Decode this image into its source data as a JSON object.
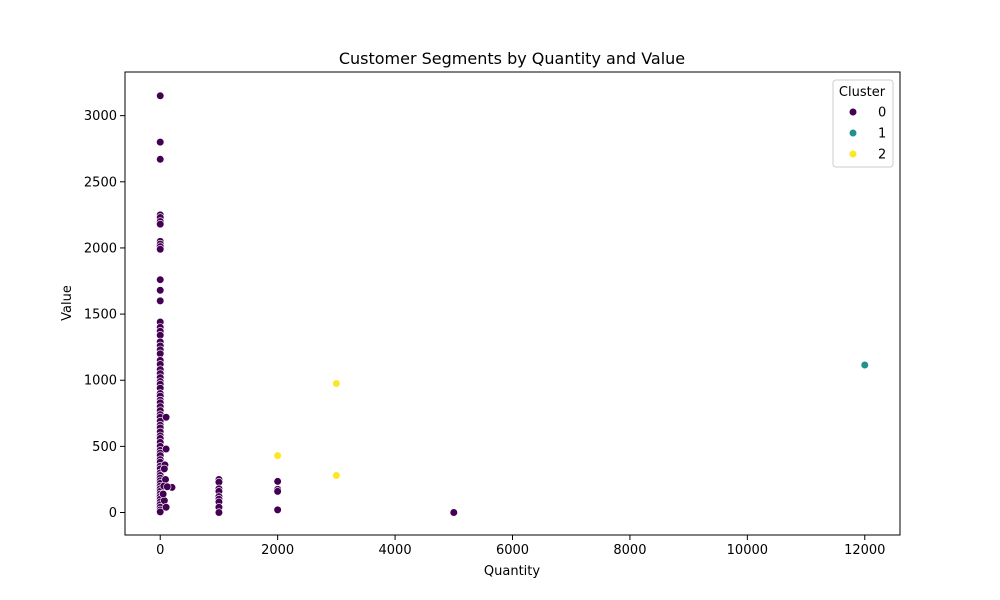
{
  "chart_data": {
    "type": "scatter",
    "title": "Customer Segments by Quantity and Value",
    "xlabel": "Quantity",
    "ylabel": "Value",
    "xlim": [
      -600,
      12600
    ],
    "ylim": [
      -170,
      3330
    ],
    "x_ticks": [
      0,
      2000,
      4000,
      6000,
      8000,
      10000,
      12000
    ],
    "y_ticks": [
      0,
      500,
      1000,
      1500,
      2000,
      2500,
      3000
    ],
    "grid": false,
    "legend": {
      "title": "Cluster",
      "placement": "top-right"
    },
    "series": [
      {
        "name": "0",
        "color": "#440154",
        "points": [
          [
            0,
            3150
          ],
          [
            0,
            2800
          ],
          [
            0,
            2670
          ],
          [
            0,
            2250
          ],
          [
            0,
            2230
          ],
          [
            0,
            2200
          ],
          [
            0,
            2180
          ],
          [
            0,
            2050
          ],
          [
            0,
            2030
          ],
          [
            0,
            2010
          ],
          [
            0,
            1990
          ],
          [
            0,
            1760
          ],
          [
            0,
            1680
          ],
          [
            0,
            1600
          ],
          [
            0,
            1440
          ],
          [
            0,
            1400
          ],
          [
            0,
            1370
          ],
          [
            0,
            1340
          ],
          [
            0,
            1290
          ],
          [
            0,
            1260
          ],
          [
            0,
            1230
          ],
          [
            0,
            1200
          ],
          [
            0,
            1150
          ],
          [
            0,
            1120
          ],
          [
            0,
            1080
          ],
          [
            0,
            1050
          ],
          [
            0,
            1020
          ],
          [
            0,
            990
          ],
          [
            0,
            970
          ],
          [
            0,
            940
          ],
          [
            0,
            900
          ],
          [
            0,
            880
          ],
          [
            0,
            850
          ],
          [
            0,
            830
          ],
          [
            0,
            800
          ],
          [
            0,
            770
          ],
          [
            0,
            740
          ],
          [
            0,
            720
          ],
          [
            0,
            690
          ],
          [
            0,
            660
          ],
          [
            0,
            640
          ],
          [
            0,
            610
          ],
          [
            0,
            580
          ],
          [
            0,
            560
          ],
          [
            0,
            530
          ],
          [
            0,
            500
          ],
          [
            0,
            470
          ],
          [
            0,
            450
          ],
          [
            0,
            430
          ],
          [
            0,
            400
          ],
          [
            0,
            380
          ],
          [
            0,
            350
          ],
          [
            0,
            330
          ],
          [
            0,
            300
          ],
          [
            0,
            280
          ],
          [
            0,
            260
          ],
          [
            0,
            240
          ],
          [
            0,
            220
          ],
          [
            0,
            200
          ],
          [
            0,
            180
          ],
          [
            0,
            160
          ],
          [
            0,
            140
          ],
          [
            0,
            120
          ],
          [
            0,
            100
          ],
          [
            0,
            80
          ],
          [
            0,
            60
          ],
          [
            0,
            40
          ],
          [
            0,
            20
          ],
          [
            0,
            5
          ],
          [
            100,
            720
          ],
          [
            100,
            480
          ],
          [
            80,
            360
          ],
          [
            70,
            330
          ],
          [
            90,
            250
          ],
          [
            60,
            200
          ],
          [
            200,
            190
          ],
          [
            120,
            195
          ],
          [
            70,
            90
          ],
          [
            100,
            40
          ],
          [
            50,
            140
          ],
          [
            1000,
            250
          ],
          [
            1000,
            230
          ],
          [
            1000,
            180
          ],
          [
            1000,
            160
          ],
          [
            1000,
            120
          ],
          [
            1000,
            100
          ],
          [
            1000,
            80
          ],
          [
            1000,
            40
          ],
          [
            1000,
            0
          ],
          [
            2000,
            235
          ],
          [
            2000,
            175
          ],
          [
            2000,
            160
          ],
          [
            2000,
            20
          ],
          [
            5000,
            0
          ]
        ]
      },
      {
        "name": "1",
        "color": "#21918c",
        "points": [
          [
            12000,
            1115
          ]
        ]
      },
      {
        "name": "2",
        "color": "#fde725",
        "points": [
          [
            3000,
            975
          ],
          [
            2000,
            430
          ],
          [
            3000,
            280
          ]
        ]
      }
    ]
  }
}
